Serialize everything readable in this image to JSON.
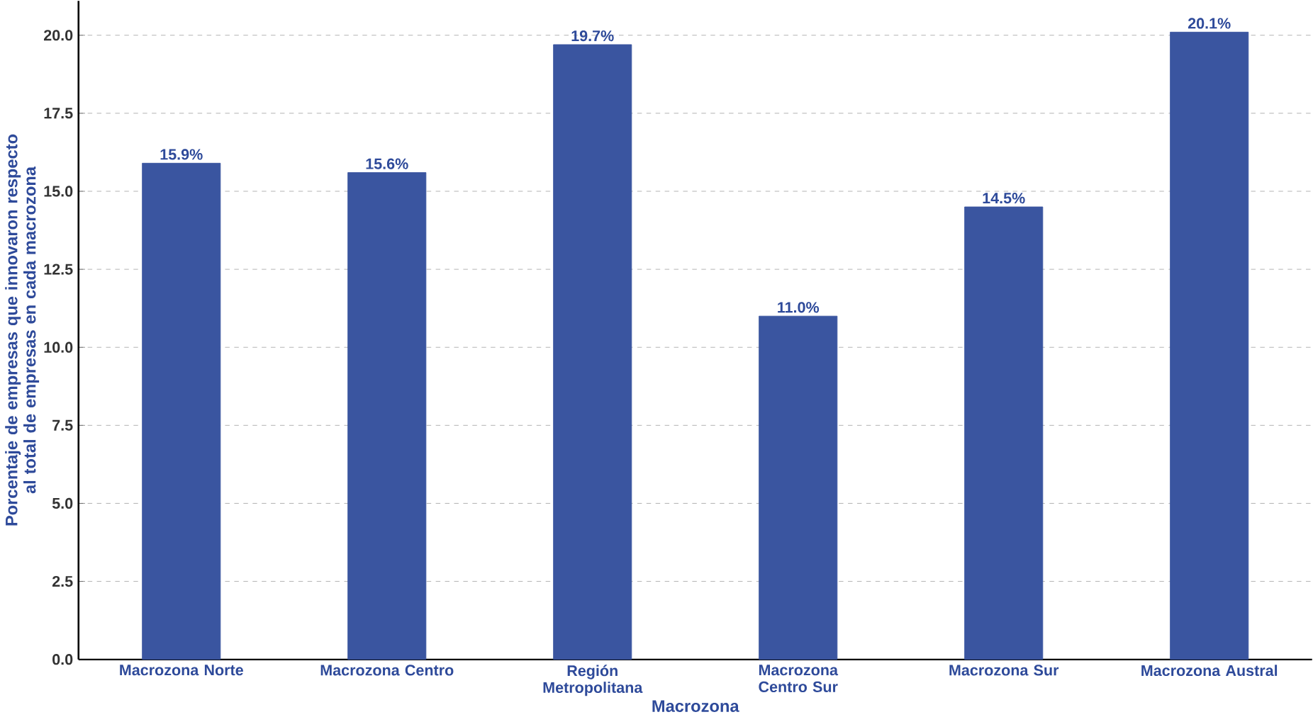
{
  "chart_data": {
    "type": "bar",
    "xlabel": "Macrozona",
    "ylabel": "Porcentaje de empresas que innovaron respecto al total de empresas en cada macrozona",
    "categories": [
      "Macrozona Norte",
      "Macrozona Centro",
      "Región Metropolitana",
      "Macrozona Centro Sur",
      "Macrozona Sur",
      "Macrozona Austral"
    ],
    "values": [
      15.9,
      15.6,
      19.7,
      11.0,
      14.5,
      20.1
    ],
    "value_labels": [
      "15.9%",
      "15.6%",
      "19.7%",
      "11.0%",
      "14.5%",
      "20.1%"
    ],
    "color": "#3a55a0",
    "ylim": [
      0,
      21.1
    ],
    "yticks": [
      {
        "value": 0,
        "label": "0.0"
      },
      {
        "value": 2.5,
        "label": "2.5"
      },
      {
        "value": 5,
        "label": "5.0"
      },
      {
        "value": 7.5,
        "label": "7.5"
      },
      {
        "value": 10,
        "label": "10.0"
      },
      {
        "value": 12.5,
        "label": "12.5"
      },
      {
        "value": 15,
        "label": "15.0"
      },
      {
        "value": 17.5,
        "label": "17.5"
      },
      {
        "value": 20,
        "label": "20.0"
      }
    ],
    "grid": "y"
  }
}
